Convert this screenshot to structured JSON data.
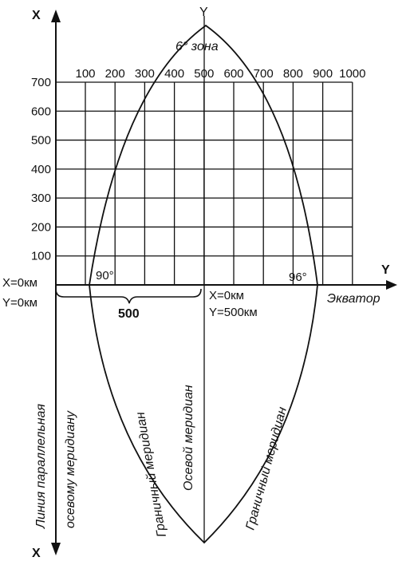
{
  "axes": {
    "x_label_top": "X",
    "x_label_bottom": "X",
    "y_label_top": "Y",
    "y_label_right": "Y"
  },
  "zone_label": "6° зона",
  "grid": {
    "top_ticks": [
      "100",
      "200",
      "300",
      "400",
      "500",
      "600",
      "700",
      "800",
      "900",
      "1000"
    ],
    "left_ticks": [
      "700",
      "600",
      "500",
      "400",
      "300",
      "200",
      "100"
    ]
  },
  "angles": {
    "left": "90°",
    "right": "96°"
  },
  "origin": {
    "line1": "X=0км",
    "line2": "Y=0км"
  },
  "center": {
    "line1": "X=0км",
    "line2": "Y=500км"
  },
  "span_label": "500",
  "equator_label": "Экватор",
  "vertical_labels": {
    "parallel_line_1": "Линия параллельная",
    "parallel_line_2": "осевому меридиану",
    "left_boundary": "Граничный меридиан",
    "axial": "Осевой меридиан",
    "right_boundary": "Граничный меридиан"
  },
  "colors": {
    "ink": "#111111",
    "background": "#ffffff"
  }
}
